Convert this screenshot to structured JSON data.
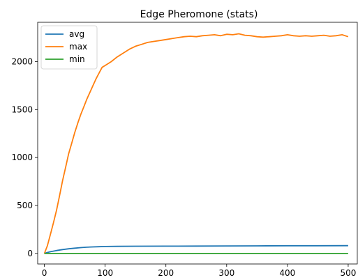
{
  "chart_data": {
    "type": "line",
    "title": "Edge Pheromone (stats)",
    "xlabel": "",
    "ylabel": "",
    "xlim": [
      -11,
      515
    ],
    "ylim": [
      -110,
      2410
    ],
    "xticks": [
      0,
      100,
      200,
      300,
      400,
      500
    ],
    "yticks": [
      0,
      500,
      1000,
      1500,
      2000
    ],
    "grid": false,
    "legend_position": "top-left",
    "series": [
      {
        "name": "avg",
        "color": "#1f77b4",
        "points": [
          [
            0,
            0
          ],
          [
            5,
            10
          ],
          [
            10,
            18
          ],
          [
            20,
            30
          ],
          [
            30,
            40
          ],
          [
            40,
            48
          ],
          [
            50,
            55
          ],
          [
            60,
            61
          ],
          [
            70,
            65
          ],
          [
            80,
            68
          ],
          [
            90,
            70
          ],
          [
            100,
            72
          ],
          [
            120,
            74
          ],
          [
            150,
            75
          ],
          [
            200,
            76
          ],
          [
            250,
            77
          ],
          [
            300,
            78
          ],
          [
            350,
            79
          ],
          [
            400,
            80
          ],
          [
            450,
            80
          ],
          [
            500,
            81
          ]
        ]
      },
      {
        "name": "max",
        "color": "#ff7f0e",
        "points": [
          [
            0,
            0
          ],
          [
            5,
            80
          ],
          [
            10,
            200
          ],
          [
            15,
            320
          ],
          [
            20,
            450
          ],
          [
            25,
            600
          ],
          [
            30,
            760
          ],
          [
            35,
            900
          ],
          [
            40,
            1040
          ],
          [
            45,
            1150
          ],
          [
            50,
            1260
          ],
          [
            55,
            1360
          ],
          [
            60,
            1450
          ],
          [
            65,
            1530
          ],
          [
            70,
            1610
          ],
          [
            75,
            1680
          ],
          [
            80,
            1750
          ],
          [
            85,
            1820
          ],
          [
            90,
            1880
          ],
          [
            95,
            1940
          ],
          [
            100,
            1960
          ],
          [
            110,
            2000
          ],
          [
            120,
            2050
          ],
          [
            130,
            2090
          ],
          [
            140,
            2130
          ],
          [
            150,
            2160
          ],
          [
            160,
            2180
          ],
          [
            170,
            2200
          ],
          [
            180,
            2210
          ],
          [
            190,
            2220
          ],
          [
            200,
            2230
          ],
          [
            210,
            2240
          ],
          [
            220,
            2250
          ],
          [
            230,
            2260
          ],
          [
            240,
            2265
          ],
          [
            250,
            2260
          ],
          [
            260,
            2270
          ],
          [
            270,
            2275
          ],
          [
            280,
            2280
          ],
          [
            290,
            2270
          ],
          [
            300,
            2285
          ],
          [
            310,
            2280
          ],
          [
            320,
            2290
          ],
          [
            330,
            2275
          ],
          [
            340,
            2270
          ],
          [
            350,
            2260
          ],
          [
            360,
            2255
          ],
          [
            370,
            2260
          ],
          [
            380,
            2265
          ],
          [
            390,
            2270
          ],
          [
            400,
            2280
          ],
          [
            410,
            2270
          ],
          [
            420,
            2265
          ],
          [
            430,
            2270
          ],
          [
            440,
            2265
          ],
          [
            450,
            2270
          ],
          [
            460,
            2275
          ],
          [
            470,
            2265
          ],
          [
            480,
            2270
          ],
          [
            490,
            2280
          ],
          [
            500,
            2260
          ]
        ]
      },
      {
        "name": "min",
        "color": "#2ca02c",
        "points": [
          [
            0,
            0
          ],
          [
            500,
            0
          ]
        ]
      }
    ]
  }
}
